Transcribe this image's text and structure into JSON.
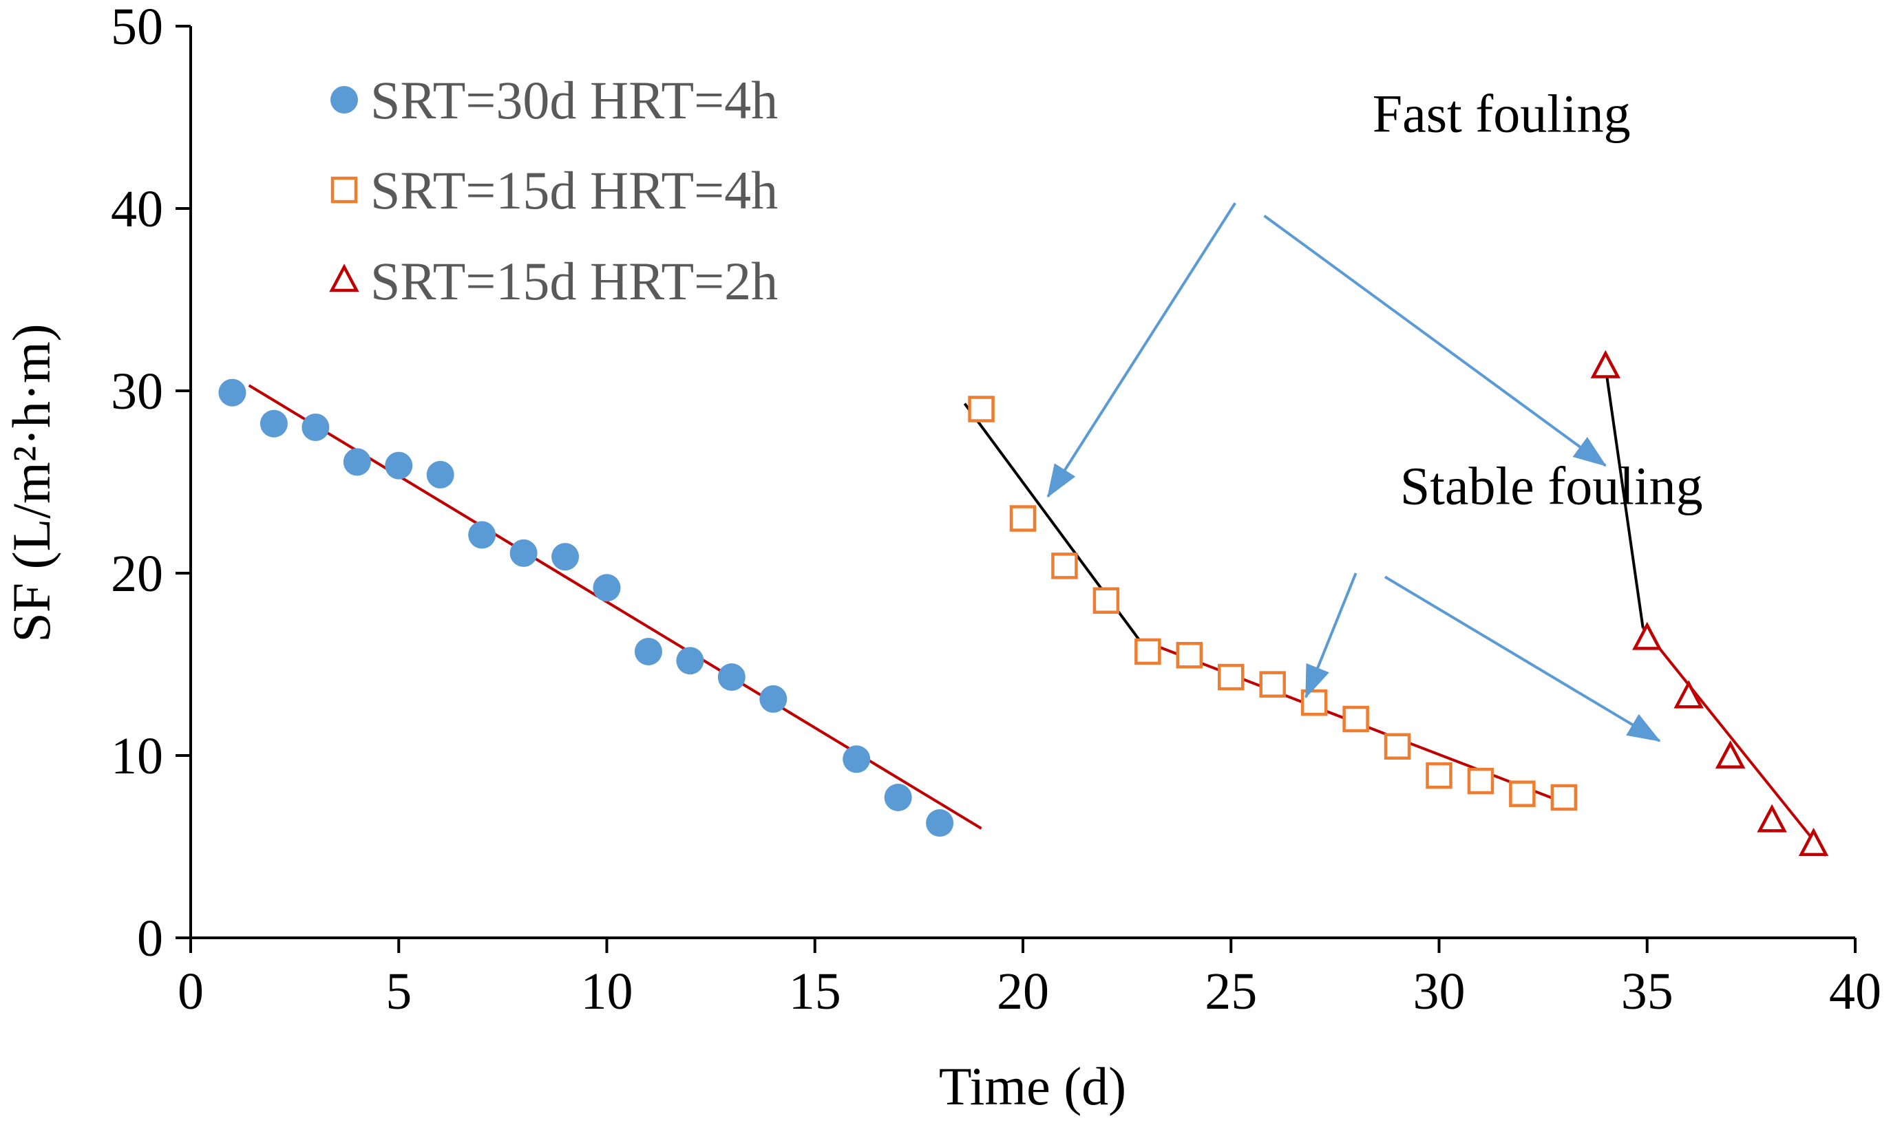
{
  "chart_data": {
    "type": "scatter",
    "xlabel": "Time  (d)",
    "ylabel": "SF (L/m²·h·m)",
    "xlim": [
      0,
      40
    ],
    "ylim": [
      0,
      50
    ],
    "xticks": [
      0,
      5,
      10,
      15,
      20,
      25,
      30,
      35,
      40
    ],
    "yticks": [
      0,
      10,
      20,
      30,
      40,
      50
    ],
    "grid": false,
    "legend_position": "top-left",
    "series": [
      {
        "name": "SRT=30d  HRT=4h",
        "marker": "circle",
        "color": "#5B9BD5",
        "x": [
          1,
          2,
          3,
          4,
          5,
          6,
          7,
          8,
          9,
          10,
          11,
          12,
          13,
          14,
          16,
          17,
          18
        ],
        "y": [
          29.9,
          28.2,
          28.0,
          26.1,
          25.9,
          25.4,
          22.1,
          21.1,
          20.9,
          19.2,
          15.7,
          15.2,
          14.3,
          13.1,
          9.8,
          7.7,
          6.3
        ]
      },
      {
        "name": "SRT=15d  HRT=4h",
        "marker": "square-open",
        "color": "#ED7D31",
        "x": [
          19,
          20,
          21,
          22,
          23,
          24,
          25,
          26,
          27,
          28,
          29,
          30,
          31,
          32,
          33
        ],
        "y": [
          29.0,
          23.0,
          20.4,
          18.5,
          15.7,
          15.5,
          14.3,
          13.9,
          12.9,
          12.0,
          10.5,
          8.9,
          8.6,
          7.9,
          7.7
        ]
      },
      {
        "name": "SRT=15d  HRT=2h",
        "marker": "triangle-open",
        "color": "#C00000",
        "x": [
          34,
          35,
          36,
          37,
          38,
          39
        ],
        "y": [
          31.3,
          16.4,
          13.2,
          9.9,
          6.4,
          5.1
        ]
      }
    ],
    "trendlines": [
      {
        "color": "#C00000",
        "x": [
          1.4,
          19.0
        ],
        "y": [
          30.3,
          6.0
        ]
      },
      {
        "color": "#000000",
        "x": [
          18.6,
          23.1
        ],
        "y": [
          29.3,
          15.4
        ]
      },
      {
        "color": "#C00000",
        "x": [
          23.1,
          32.8
        ],
        "y": [
          16.1,
          7.6
        ]
      },
      {
        "color": "#000000",
        "x": [
          34.0,
          34.9
        ],
        "y": [
          31.3,
          17.0
        ]
      },
      {
        "color": "#C00000",
        "x": [
          34.9,
          39.3
        ],
        "y": [
          17.0,
          4.5
        ]
      }
    ],
    "annotations": [
      {
        "text": "Fast fouling",
        "anchor": [
          31.5,
          44.2
        ],
        "color": "#5B9BD5",
        "arrows": [
          {
            "from": [
              25.1,
              40.3
            ],
            "to": [
              20.6,
              24.2
            ]
          },
          {
            "from": [
              25.8,
              39.6
            ],
            "to": [
              34.0,
              25.9
            ]
          }
        ]
      },
      {
        "text": "Stable fouling",
        "anchor": [
          32.7,
          23.8
        ],
        "color": "#5B9BD5",
        "arrows": [
          {
            "from": [
              28.0,
              20.0
            ],
            "to": [
              26.8,
              13.2
            ]
          },
          {
            "from": [
              28.7,
              19.8
            ],
            "to": [
              35.3,
              10.8
            ]
          }
        ]
      }
    ]
  }
}
